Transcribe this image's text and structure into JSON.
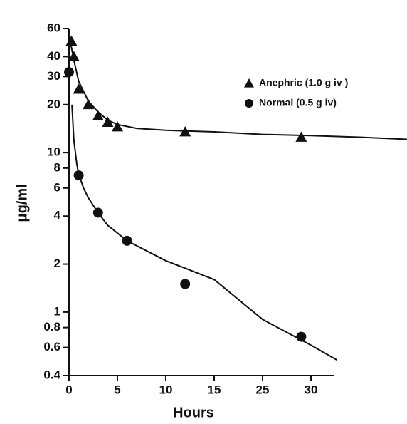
{
  "chart_data": {
    "type": "scatter",
    "x_label": "Hours",
    "y_label": "μg/ml",
    "log_y": true,
    "xlim": [
      0,
      30
    ],
    "xticks": [
      0,
      5,
      10,
      15,
      25,
      30
    ],
    "ylim": [
      0.4,
      60
    ],
    "yticks": [
      0.4,
      0.6,
      0.8,
      1,
      2,
      4,
      6,
      8,
      10,
      20,
      30,
      40,
      60
    ],
    "legend": "upper right",
    "series": [
      {
        "name": "Anephric (1.0 g iv )",
        "marker": "triangle",
        "color": "#111111",
        "x": [
          0.25,
          0.5,
          1,
          2,
          3,
          4,
          5,
          12,
          29
        ],
        "values": [
          50,
          40,
          25,
          20,
          17,
          15.5,
          14.5,
          13.5,
          12.5
        ],
        "fit": {
          "x": [
            0,
            0.5,
            1,
            2,
            3,
            4,
            5,
            7,
            10,
            15,
            25,
            30,
            35,
            40
          ],
          "values": [
            55,
            38,
            28,
            21,
            18,
            16,
            15,
            14.2,
            13.8,
            13.5,
            13,
            12.8,
            12.5,
            12.1
          ]
        }
      },
      {
        "name": "Normal (0.5 g iv)",
        "marker": "circle",
        "color": "#111111",
        "x": [
          0,
          1,
          3,
          6,
          12,
          29
        ],
        "values": [
          32,
          7.2,
          4.2,
          2.8,
          1.5,
          0.7
        ],
        "fit": {
          "x": [
            0.3,
            0.5,
            0.8,
            1,
            1.5,
            2,
            3,
            4,
            6,
            10,
            15,
            25,
            30,
            32.7
          ],
          "values": [
            20,
            12,
            8.5,
            7.3,
            6,
            5.2,
            4.2,
            3.5,
            2.8,
            2.1,
            1.6,
            0.9,
            0.62,
            0.5
          ]
        }
      }
    ]
  }
}
